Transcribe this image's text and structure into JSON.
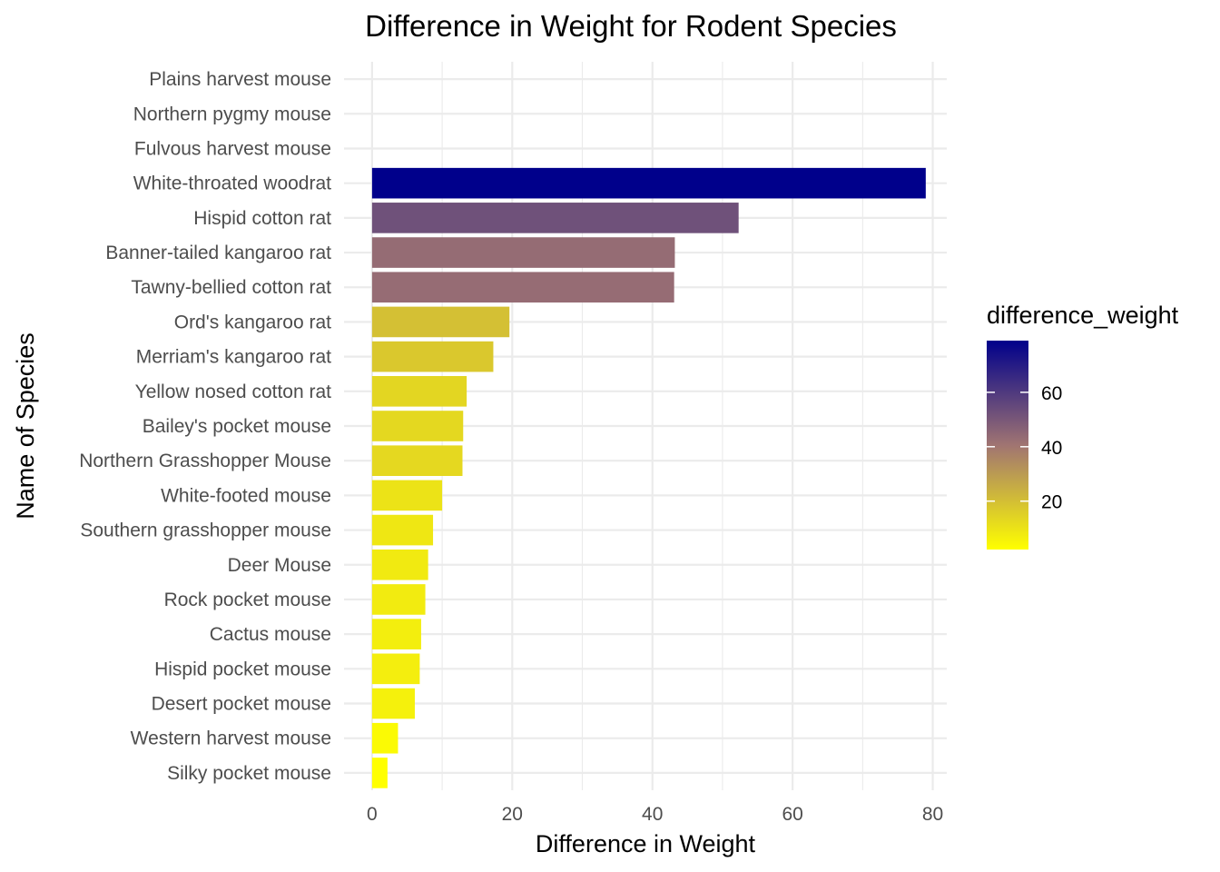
{
  "chart_data": {
    "type": "bar",
    "orientation": "horizontal",
    "title": "Difference in Weight for Rodent Species",
    "xlabel": "Difference in Weight",
    "ylabel": "Name of Species",
    "xlim": [
      -4,
      82
    ],
    "x_ticks": [
      0,
      20,
      40,
      60,
      80
    ],
    "grid": true,
    "categories": [
      "Plains harvest mouse",
      "Northern pygmy mouse",
      "Fulvous harvest mouse",
      "White-throated woodrat",
      "Hispid cotton rat",
      "Banner-tailed kangaroo rat",
      "Tawny-bellied cotton rat",
      "Ord's kangaroo rat",
      "Merriam's kangaroo rat",
      "Yellow nosed cotton rat",
      "Bailey's pocket mouse",
      "Northern Grasshopper Mouse",
      "White-footed mouse",
      "Southern grasshopper mouse",
      "Deer Mouse",
      "Rock pocket mouse",
      "Cactus mouse",
      "Hispid pocket mouse",
      "Desert pocket mouse",
      "Western harvest mouse",
      "Silky pocket mouse"
    ],
    "values": [
      null,
      null,
      null,
      79,
      52.3,
      43.2,
      43.1,
      19.6,
      17.3,
      13.5,
      13,
      12.9,
      10,
      8.7,
      8,
      7.6,
      7,
      6.8,
      6.1,
      3.7,
      2.2
    ],
    "legend": {
      "title": "difference_weight",
      "placement": "right",
      "ticks": [
        20,
        40,
        60
      ],
      "range": [
        2.2,
        79
      ],
      "color_low": "#FFFF00",
      "color_mid": "#A07472",
      "color_high": "#00008B"
    }
  }
}
